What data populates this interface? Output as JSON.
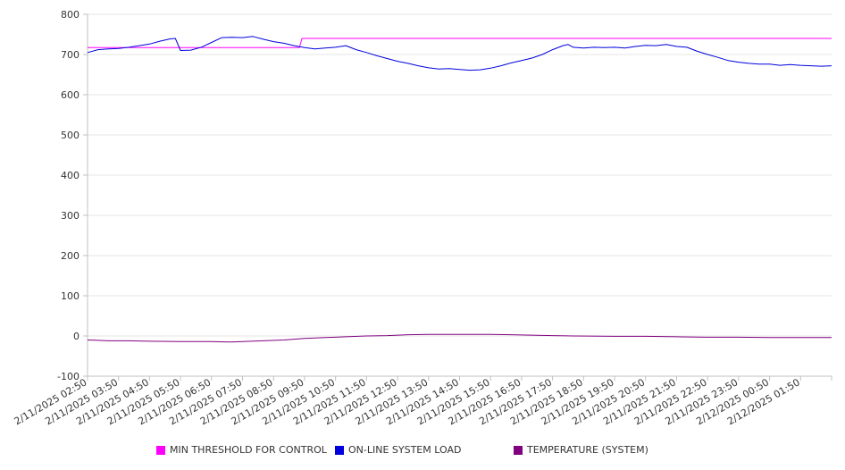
{
  "chart_data": {
    "type": "line",
    "title": "",
    "xlabel": "",
    "ylabel": "",
    "ylim": [
      -100,
      800
    ],
    "y_ticks": [
      "800",
      "700",
      "600",
      "500",
      "400",
      "300",
      "200",
      "100",
      "0",
      "-100"
    ],
    "x_range": [
      "2025-02-11T02:50",
      "2025-02-12T02:50"
    ],
    "x_tick_labels": [
      "2/11/2025 02:50",
      "2/11/2025 03:50",
      "2/11/2025 04:50",
      "2/11/2025 05:50",
      "2/11/2025 06:50",
      "2/11/2025 07:50",
      "2/11/2025 08:50",
      "2/11/2025 09:50",
      "2/11/2025 10:50",
      "2/11/2025 11:50",
      "2/11/2025 12:50",
      "2/11/2025 13:50",
      "2/11/2025 14:50",
      "2/11/2025 15:50",
      "2/11/2025 16:50",
      "2/11/2025 17:50",
      "2/11/2025 18:50",
      "2/11/2025 19:50",
      "2/11/2025 20:50",
      "2/11/2025 21:50",
      "2/11/2025 22:50",
      "2/11/2025 23:50",
      "2/12/2025 00:50",
      "2/12/2025 01:50"
    ],
    "grid": true,
    "legend_position": "bottom",
    "series": [
      {
        "name": "MIN THRESHOLD FOR CONTROL",
        "color": "#ff00ff",
        "points": [
          [
            "2025-02-11T02:50",
            717
          ],
          [
            "2025-02-11T09:40",
            717
          ],
          [
            "2025-02-11T09:45",
            740
          ],
          [
            "2025-02-12T02:50",
            740
          ]
        ]
      },
      {
        "name": "ON-LINE SYSTEM LOAD",
        "color": "#0000dd",
        "points": [
          [
            "2025-02-11T02:50",
            705
          ],
          [
            "2025-02-11T03:10",
            712
          ],
          [
            "2025-02-11T03:30",
            714
          ],
          [
            "2025-02-11T03:50",
            715
          ],
          [
            "2025-02-11T04:10",
            718
          ],
          [
            "2025-02-11T04:30",
            722
          ],
          [
            "2025-02-11T04:50",
            726
          ],
          [
            "2025-02-11T05:10",
            733
          ],
          [
            "2025-02-11T05:30",
            739
          ],
          [
            "2025-02-11T05:40",
            740
          ],
          [
            "2025-02-11T05:50",
            710
          ],
          [
            "2025-02-11T06:10",
            711
          ],
          [
            "2025-02-11T06:30",
            718
          ],
          [
            "2025-02-11T06:50",
            730
          ],
          [
            "2025-02-11T07:10",
            742
          ],
          [
            "2025-02-11T07:30",
            743
          ],
          [
            "2025-02-11T07:50",
            742
          ],
          [
            "2025-02-11T08:10",
            745
          ],
          [
            "2025-02-11T08:30",
            738
          ],
          [
            "2025-02-11T08:50",
            732
          ],
          [
            "2025-02-11T09:10",
            728
          ],
          [
            "2025-02-11T09:30",
            722
          ],
          [
            "2025-02-11T09:50",
            717
          ],
          [
            "2025-02-11T10:10",
            714
          ],
          [
            "2025-02-11T10:30",
            716
          ],
          [
            "2025-02-11T10:50",
            718
          ],
          [
            "2025-02-11T11:10",
            722
          ],
          [
            "2025-02-11T11:30",
            712
          ],
          [
            "2025-02-11T11:50",
            705
          ],
          [
            "2025-02-11T12:10",
            697
          ],
          [
            "2025-02-11T12:30",
            690
          ],
          [
            "2025-02-11T12:50",
            683
          ],
          [
            "2025-02-11T13:10",
            678
          ],
          [
            "2025-02-11T13:30",
            672
          ],
          [
            "2025-02-11T13:50",
            667
          ],
          [
            "2025-02-11T14:10",
            664
          ],
          [
            "2025-02-11T14:30",
            665
          ],
          [
            "2025-02-11T14:50",
            663
          ],
          [
            "2025-02-11T15:10",
            661
          ],
          [
            "2025-02-11T15:30",
            662
          ],
          [
            "2025-02-11T15:50",
            666
          ],
          [
            "2025-02-11T16:10",
            672
          ],
          [
            "2025-02-11T16:30",
            679
          ],
          [
            "2025-02-11T16:50",
            685
          ],
          [
            "2025-02-11T17:10",
            691
          ],
          [
            "2025-02-11T17:30",
            700
          ],
          [
            "2025-02-11T17:50",
            712
          ],
          [
            "2025-02-11T18:10",
            722
          ],
          [
            "2025-02-11T18:20",
            725
          ],
          [
            "2025-02-11T18:30",
            718
          ],
          [
            "2025-02-11T18:50",
            716
          ],
          [
            "2025-02-11T19:10",
            718
          ],
          [
            "2025-02-11T19:30",
            717
          ],
          [
            "2025-02-11T19:50",
            718
          ],
          [
            "2025-02-11T20:10",
            716
          ],
          [
            "2025-02-11T20:30",
            720
          ],
          [
            "2025-02-11T20:50",
            723
          ],
          [
            "2025-02-11T21:10",
            722
          ],
          [
            "2025-02-11T21:30",
            725
          ],
          [
            "2025-02-11T21:50",
            720
          ],
          [
            "2025-02-11T22:10",
            718
          ],
          [
            "2025-02-11T22:30",
            708
          ],
          [
            "2025-02-11T22:50",
            700
          ],
          [
            "2025-02-11T23:10",
            693
          ],
          [
            "2025-02-11T23:30",
            685
          ],
          [
            "2025-02-11T23:50",
            681
          ],
          [
            "2025-02-12T00:10",
            678
          ],
          [
            "2025-02-12T00:30",
            676
          ],
          [
            "2025-02-12T00:50",
            676
          ],
          [
            "2025-02-12T01:10",
            673
          ],
          [
            "2025-02-12T01:30",
            675
          ],
          [
            "2025-02-12T01:50",
            673
          ],
          [
            "2025-02-12T02:10",
            672
          ],
          [
            "2025-02-12T02:30",
            671
          ],
          [
            "2025-02-12T02:50",
            672
          ]
        ]
      },
      {
        "name": "TEMPERATURE (SYSTEM)",
        "color": "#800080",
        "points": [
          [
            "2025-02-11T02:50",
            -10
          ],
          [
            "2025-02-11T03:10",
            -11
          ],
          [
            "2025-02-11T03:30",
            -12
          ],
          [
            "2025-02-11T04:10",
            -12
          ],
          [
            "2025-02-11T04:50",
            -13
          ],
          [
            "2025-02-11T05:50",
            -14
          ],
          [
            "2025-02-11T06:50",
            -14
          ],
          [
            "2025-02-11T07:30",
            -15
          ],
          [
            "2025-02-11T07:50",
            -14
          ],
          [
            "2025-02-11T08:30",
            -12
          ],
          [
            "2025-02-11T09:10",
            -10
          ],
          [
            "2025-02-11T09:50",
            -6
          ],
          [
            "2025-02-11T10:30",
            -4
          ],
          [
            "2025-02-11T11:10",
            -2
          ],
          [
            "2025-02-11T11:50",
            0
          ],
          [
            "2025-02-11T12:30",
            1
          ],
          [
            "2025-02-11T13:10",
            3
          ],
          [
            "2025-02-11T13:50",
            4
          ],
          [
            "2025-02-11T14:50",
            4
          ],
          [
            "2025-02-11T15:50",
            4
          ],
          [
            "2025-02-11T16:30",
            3
          ],
          [
            "2025-02-11T17:10",
            2
          ],
          [
            "2025-02-11T17:50",
            1
          ],
          [
            "2025-02-11T18:30",
            0
          ],
          [
            "2025-02-11T19:50",
            -1
          ],
          [
            "2025-02-11T20:50",
            -1
          ],
          [
            "2025-02-11T21:50",
            -2
          ],
          [
            "2025-02-11T22:50",
            -3
          ],
          [
            "2025-02-11T23:50",
            -3
          ],
          [
            "2025-02-12T00:50",
            -4
          ],
          [
            "2025-02-12T01:50",
            -4
          ],
          [
            "2025-02-12T02:50",
            -4
          ]
        ]
      }
    ]
  }
}
